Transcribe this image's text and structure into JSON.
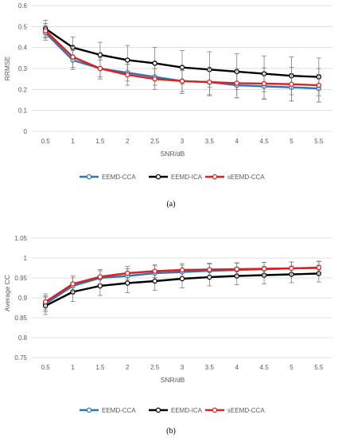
{
  "chart_data": [
    {
      "type": "line",
      "panel": "(a)",
      "xlabel": "SNR/dB",
      "ylabel": "RRMSE",
      "x": [
        0.5,
        1,
        1.5,
        2,
        2.5,
        3,
        3.5,
        4,
        4.5,
        5,
        5.5
      ],
      "ylim": [
        0,
        0.6
      ],
      "yticks": [
        0,
        0.1,
        0.2,
        0.3,
        0.4,
        0.5,
        0.6
      ],
      "grid": true,
      "legend": "bottom",
      "series": [
        {
          "name": "EEMD-CCA",
          "color": "#2e75b6",
          "values": [
            0.47,
            0.34,
            0.3,
            0.28,
            0.26,
            0.24,
            0.235,
            0.22,
            0.215,
            0.21,
            0.205
          ],
          "err": [
            0.035,
            0.045,
            0.04,
            0.04,
            0.04,
            0.05,
            0.06,
            0.06,
            0.06,
            0.065,
            0.065
          ]
        },
        {
          "name": "EEMD-ICA",
          "color": "#000000",
          "values": [
            0.49,
            0.4,
            0.365,
            0.34,
            0.325,
            0.305,
            0.295,
            0.285,
            0.275,
            0.265,
            0.26
          ],
          "err": [
            0.04,
            0.05,
            0.06,
            0.07,
            0.075,
            0.08,
            0.085,
            0.085,
            0.085,
            0.09,
            0.09
          ]
        },
        {
          "name": "sEEMD-CCA",
          "color": "#e0201f",
          "values": [
            0.48,
            0.355,
            0.3,
            0.27,
            0.25,
            0.24,
            0.235,
            0.23,
            0.228,
            0.225,
            0.22
          ],
          "err": [
            0.035,
            0.05,
            0.05,
            0.05,
            0.05,
            0.06,
            0.065,
            0.07,
            0.075,
            0.08,
            0.08
          ]
        }
      ]
    },
    {
      "type": "line",
      "panel": "(b)",
      "xlabel": "SNR/dB",
      "ylabel": "Average CC",
      "x": [
        0.5,
        1,
        1.5,
        2,
        2.5,
        3,
        3.5,
        4,
        4.5,
        5,
        5.5
      ],
      "ylim": [
        0.75,
        1.05
      ],
      "yticks": [
        0.75,
        0.8,
        0.85,
        0.9,
        0.95,
        1,
        1.05
      ],
      "grid": true,
      "legend": "bottom",
      "series": [
        {
          "name": "EEMD-CCA",
          "color": "#2e75b6",
          "values": [
            0.885,
            0.93,
            0.95,
            0.955,
            0.962,
            0.965,
            0.968,
            0.97,
            0.972,
            0.974,
            0.975
          ],
          "err": [
            0.02,
            0.02,
            0.018,
            0.018,
            0.018,
            0.017,
            0.017,
            0.017,
            0.017,
            0.016,
            0.016
          ]
        },
        {
          "name": "EEMD-ICA",
          "color": "#000000",
          "values": [
            0.88,
            0.915,
            0.93,
            0.937,
            0.942,
            0.948,
            0.952,
            0.955,
            0.957,
            0.959,
            0.961
          ],
          "err": [
            0.022,
            0.024,
            0.024,
            0.024,
            0.023,
            0.023,
            0.022,
            0.022,
            0.022,
            0.021,
            0.021
          ]
        },
        {
          "name": "sEEMD-CCA",
          "color": "#e0201f",
          "values": [
            0.89,
            0.935,
            0.953,
            0.962,
            0.967,
            0.97,
            0.971,
            0.972,
            0.973,
            0.974,
            0.976
          ],
          "err": [
            0.02,
            0.02,
            0.018,
            0.017,
            0.016,
            0.016,
            0.016,
            0.016,
            0.016,
            0.016,
            0.016
          ]
        }
      ]
    }
  ]
}
